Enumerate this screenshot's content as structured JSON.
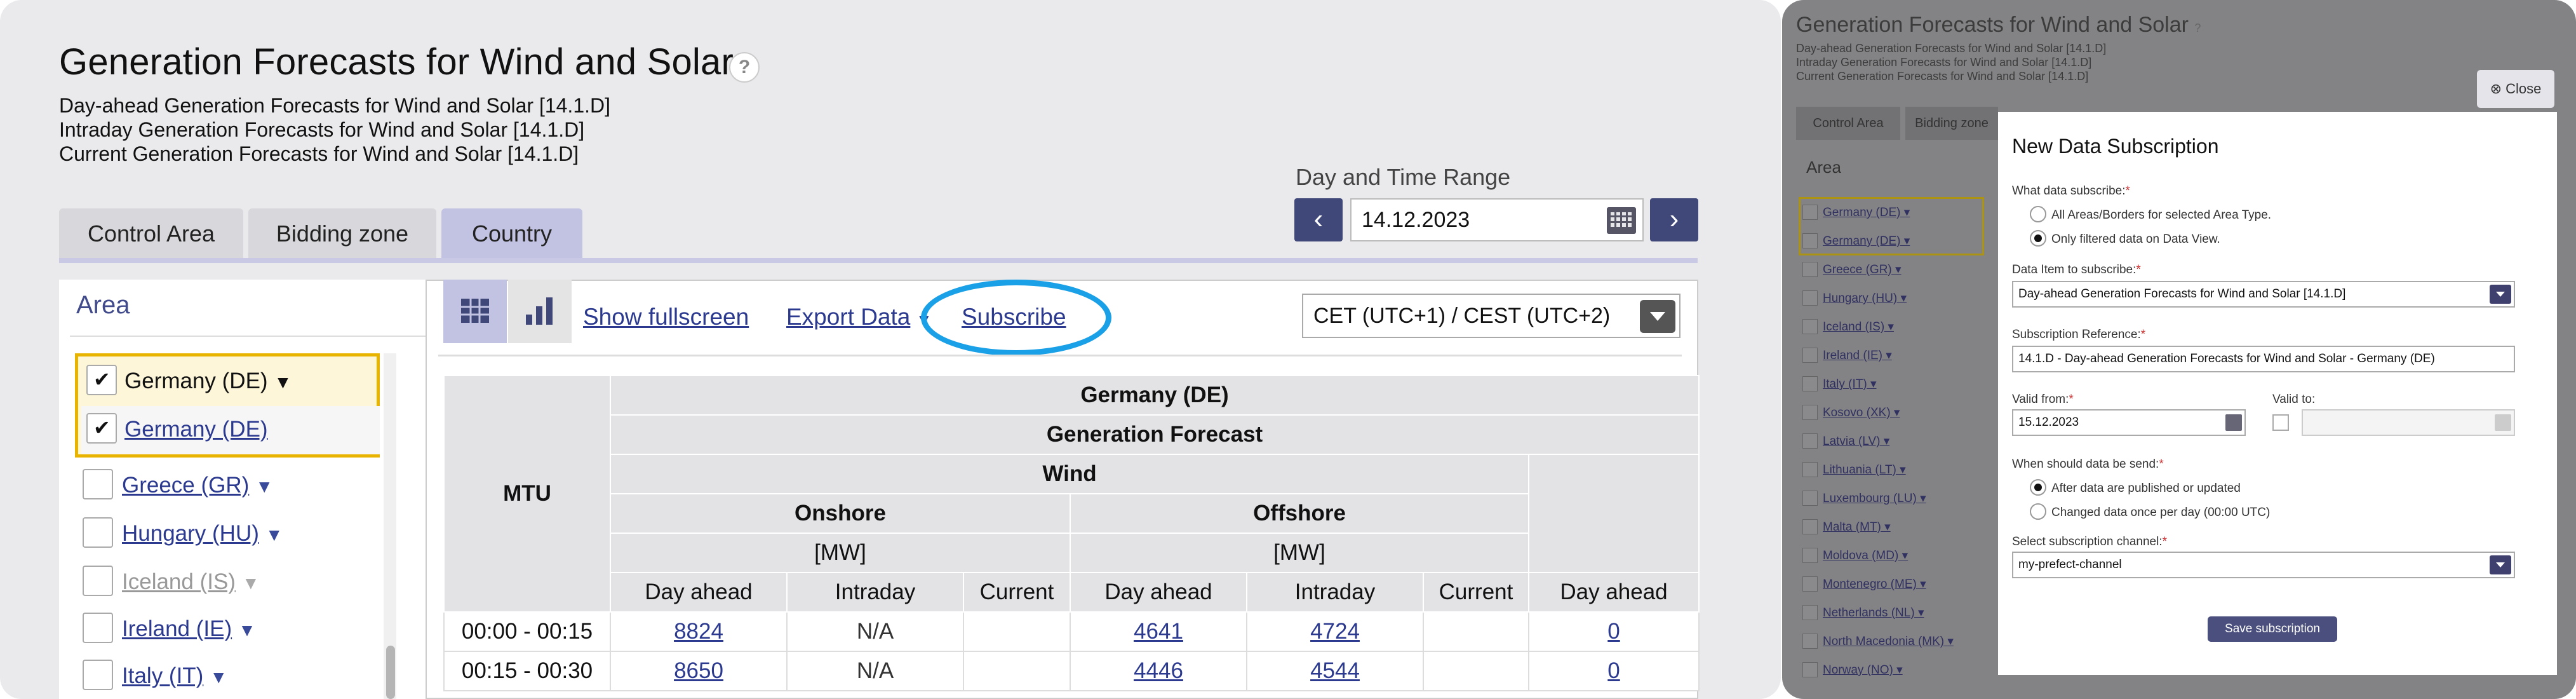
{
  "page": {
    "title": "Generation Forecasts for Wind and Solar",
    "help": "?",
    "subtitles": [
      "Day-ahead Generation Forecasts for Wind and Solar [14.1.D]",
      "Intraday Generation Forecasts for Wind and Solar [14.1.D]",
      "Current Generation Forecasts for Wind and Solar [14.1.D]"
    ]
  },
  "date_range": {
    "label": "Day and Time Range",
    "date": "14.12.2023",
    "prev": "‹",
    "next": "›"
  },
  "tabs": [
    "Control Area",
    "Bidding zone",
    "Country"
  ],
  "area": {
    "heading": "Area",
    "selected": [
      {
        "label": "Germany (DE)",
        "checked": true
      },
      {
        "label": "Germany (DE)",
        "checked": true
      }
    ],
    "items": [
      {
        "label": "Greece (GR)"
      },
      {
        "label": "Hungary (HU)"
      },
      {
        "label": "Iceland (IS)",
        "disabled": true
      },
      {
        "label": "Ireland (IE)"
      },
      {
        "label": "Italy (IT)"
      }
    ]
  },
  "toolbar": {
    "show_fullscreen": "Show fullscreen",
    "export_data": "Export Data",
    "subscribe": "Subscribe",
    "timezone": "CET (UTC+1) / CEST (UTC+2)"
  },
  "table": {
    "mtu": "MTU",
    "country": "Germany (DE)",
    "forecast": "Generation Forecast",
    "wind": "Wind",
    "onshore": "Onshore",
    "offshore": "Offshore",
    "unit": "[MW]",
    "cols": [
      "Day ahead",
      "Intraday",
      "Current",
      "Day ahead",
      "Intraday",
      "Current",
      "Day ahead"
    ],
    "rows": [
      {
        "mtu": "00:00 - 00:15",
        "values": [
          "8824",
          "N/A",
          "",
          "4641",
          "4724",
          "",
          "0"
        ]
      },
      {
        "mtu": "00:15 - 00:30",
        "values": [
          "8650",
          "N/A",
          "",
          "4446",
          "4544",
          "",
          "0"
        ]
      }
    ]
  },
  "background": {
    "title": "Generation Forecasts for Wind and Solar",
    "help": "?",
    "subtitles": [
      "Day-ahead Generation Forecasts for Wind and Solar [14.1.D]",
      "Intraday Generation Forecasts for Wind and Solar [14.1.D]",
      "Current Generation Forecasts for Wind and Solar [14.1.D]"
    ],
    "tabs": [
      "Control Area",
      "Bidding zone"
    ],
    "area_heading": "Area",
    "area_items": [
      "Germany (DE)",
      "Germany (DE)",
      "Greece (GR)",
      "Hungary (HU)",
      "Iceland (IS)",
      "Ireland (IE)",
      "Italy (IT)",
      "Kosovo (XK)",
      "Latvia (LV)",
      "Lithuania (LT)",
      "Luxembourg (LU)",
      "Malta (MT)",
      "Moldova (MD)",
      "Montenegro (ME)",
      "Netherlands (NL)",
      "North Macedonia (MK)",
      "Norway (NO)"
    ]
  },
  "dialog": {
    "close": "Close",
    "title": "New Data Subscription",
    "what_label": "What data subscribe:",
    "opt_all": "All Areas/Borders for selected Area Type.",
    "opt_filtered": "Only filtered data on Data View.",
    "item_label": "Data Item to subscribe:",
    "item_value": "Day-ahead Generation Forecasts for Wind and Solar [14.1.D]",
    "ref_label": "Subscription Reference:",
    "ref_value": "14.1.D - Day-ahead Generation Forecasts for Wind and Solar - Germany (DE)",
    "from_label": "Valid from:",
    "from_value": "15.12.2023",
    "to_label": "Valid to:",
    "when_label": "When should data be send:",
    "opt_published": "After data are published or updated",
    "opt_daily": "Changed data once per day (00:00 UTC)",
    "channel_label": "Select subscription channel:",
    "channel_value": "my-prefect-channel",
    "save": "Save subscription",
    "required_mark": "*"
  }
}
